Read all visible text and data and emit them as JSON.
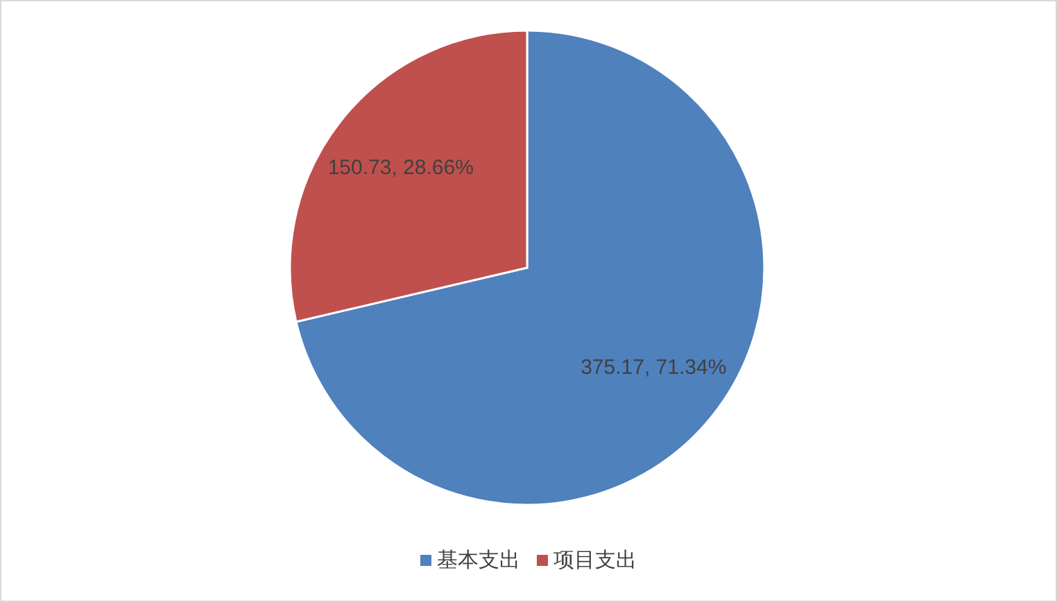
{
  "chart_data": {
    "type": "pie",
    "categories": [
      "基本支出",
      "项目支出"
    ],
    "values": [
      375.17,
      150.73
    ],
    "colors": [
      "#4f81bd",
      "#c0504d"
    ],
    "value_labels": [
      "375.17, 71.34%",
      "150.73, 28.66%"
    ],
    "legend": "bottom"
  }
}
